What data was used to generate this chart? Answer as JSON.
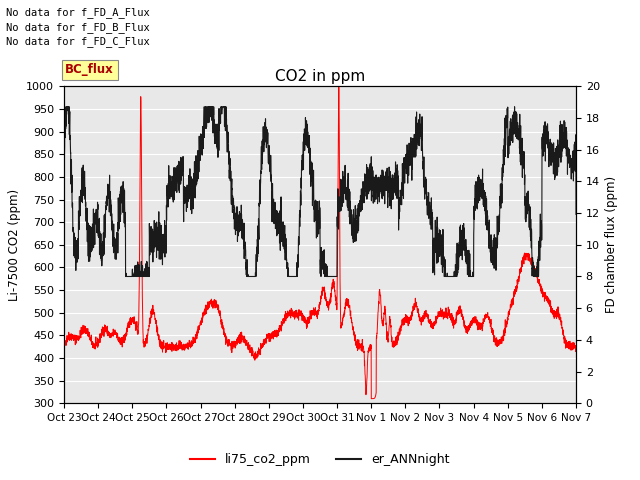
{
  "title": "CO2 in ppm",
  "ylabel_left": "Li-7500 CO2 (ppm)",
  "ylabel_right": "FD chamber flux (ppm)",
  "ylim_left": [
    300,
    1000
  ],
  "ylim_right": [
    0,
    20
  ],
  "yticks_left": [
    300,
    350,
    400,
    450,
    500,
    550,
    600,
    650,
    700,
    750,
    800,
    850,
    900,
    950,
    1000
  ],
  "yticks_right": [
    0,
    2,
    4,
    6,
    8,
    10,
    12,
    14,
    16,
    18,
    20
  ],
  "bg_color": "#e8e8e8",
  "line1_color": "#ff0000",
  "line2_color": "#1a1a1a",
  "legend1": "li75_co2_ppm",
  "legend2": "er_ANNnight",
  "legend_line1_color": "#ff0000",
  "legend_line2_color": "#1a1a1a",
  "note1": "No data for f_FD_A_Flux",
  "note2": "No data for f_FD_B_Flux",
  "note3": "No data for f_FD_C_Flux",
  "note4_text": "BC_flux",
  "note4_bg": "#ffff99",
  "note4_fg": "#aa0000",
  "xtick_labels": [
    "Oct 23",
    "Oct 24",
    "Oct 25",
    "Oct 26",
    "Oct 27",
    "Oct 28",
    "Oct 29",
    "Oct 30",
    "Oct 31",
    "Nov 1",
    "Nov 2",
    "Nov 3",
    "Nov 4",
    "Nov 5",
    "Nov 6",
    "Nov 7"
  ]
}
